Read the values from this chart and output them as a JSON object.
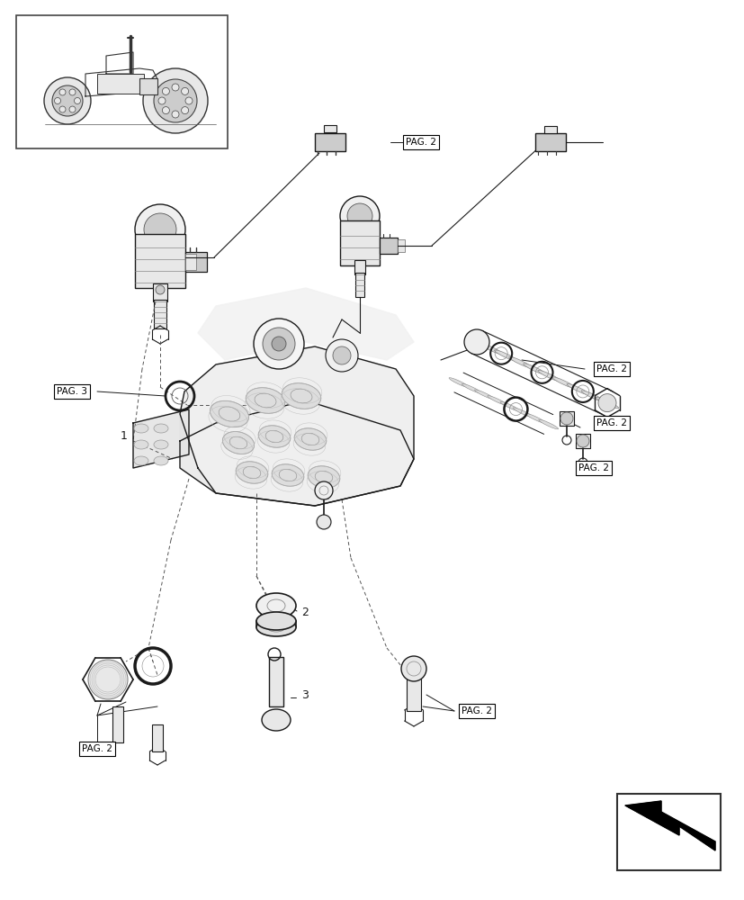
{
  "bg_color": "#ffffff",
  "line_color": "#1a1a1a",
  "gray_light": "#e8e8e8",
  "gray_mid": "#cccccc",
  "gray_dark": "#888888",
  "fig_width": 8.28,
  "fig_height": 10.0,
  "dpi": 100,
  "labels": {
    "pag2_top": "PAG. 2",
    "pag3_left": "PAG. 3",
    "pag2_right_top": "PAG. 2",
    "pag2_right_mid": "PAG. 2",
    "pag2_right_lower": "PAG. 2",
    "pag2_bottom_right": "PAG. 2",
    "pag2_bottom_left": "PAG. 2",
    "num1": "1",
    "num2": "2",
    "num3": "3"
  }
}
